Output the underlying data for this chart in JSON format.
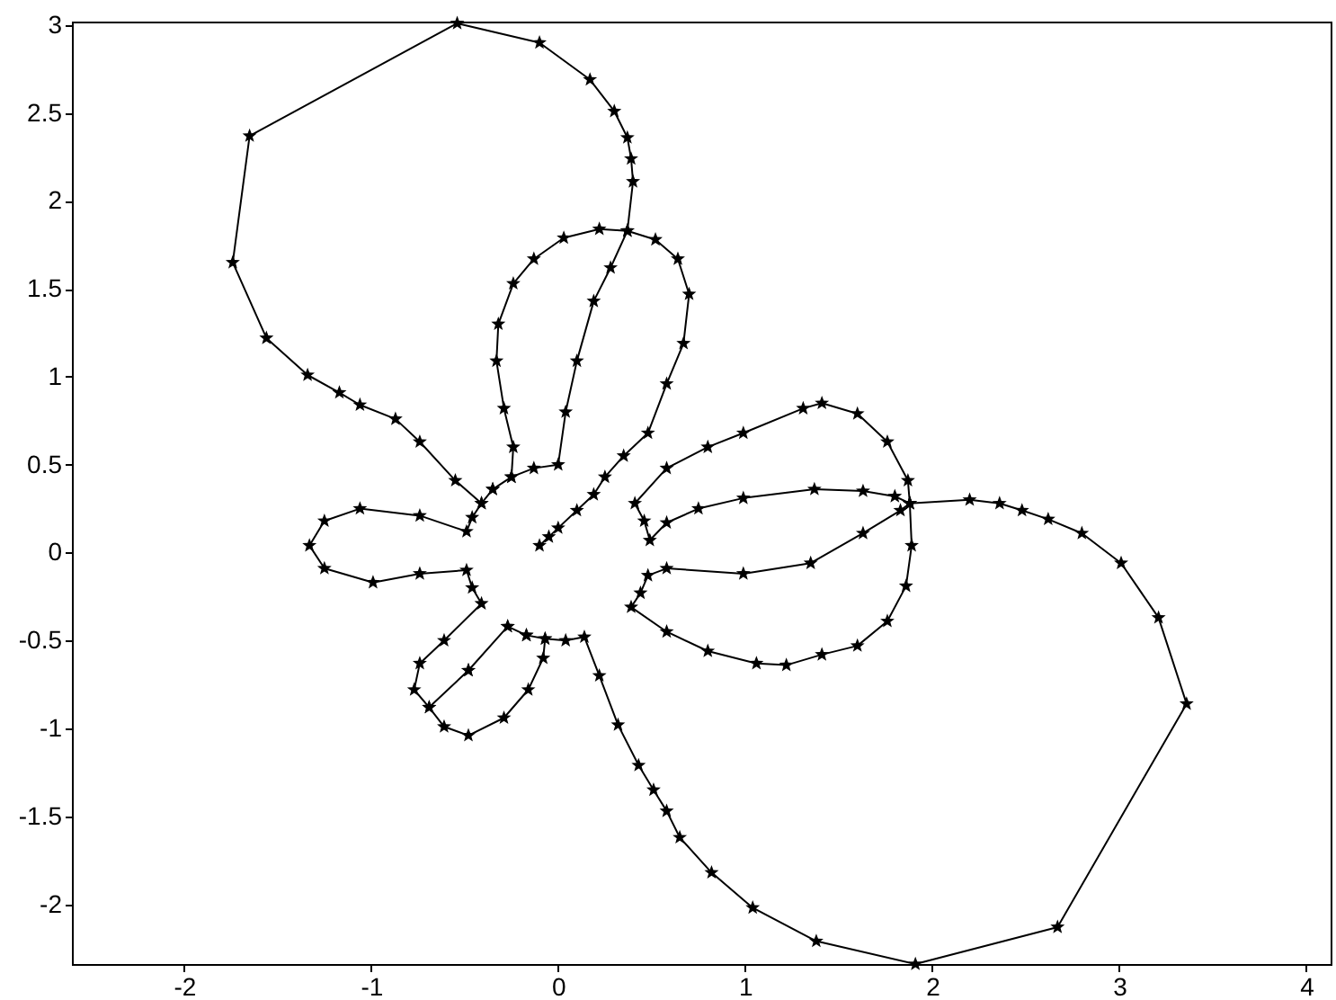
{
  "chart_data": {
    "type": "line",
    "color": "#000000",
    "marker": "star",
    "line_style": "solid",
    "xlim": [
      -2.6,
      4.13
    ],
    "ylim": [
      -2.34,
      3.02
    ],
    "xticks": [
      -2,
      -1,
      0,
      1,
      2,
      3,
      4
    ],
    "yticks": [
      -2,
      -1.5,
      -1,
      -0.5,
      0,
      0.5,
      1,
      1.5,
      2,
      2.5,
      3
    ],
    "x": [
      -0.1,
      -0.05,
      0.0,
      0.1,
      0.19,
      0.25,
      0.35,
      0.48,
      0.58,
      0.67,
      0.7,
      0.64,
      0.52,
      0.37,
      0.28,
      0.19,
      0.1,
      0.04,
      0.0,
      -0.13,
      -0.25,
      -0.35,
      -0.41,
      -0.55,
      -0.74,
      -0.87,
      -1.06,
      -1.17,
      -1.34,
      -1.56,
      -1.74,
      -1.65,
      -0.54,
      -0.1,
      0.17,
      0.3,
      0.37,
      0.39,
      0.4,
      0.37,
      0.22,
      0.03,
      -0.13,
      -0.24,
      -0.32,
      -0.33,
      -0.29,
      -0.24,
      -0.25,
      -0.35,
      -0.41,
      -0.46,
      -0.49,
      -0.74,
      -1.06,
      -1.25,
      -1.33,
      -1.25,
      -0.99,
      -0.74,
      -0.49,
      -0.46,
      -0.41,
      -0.61,
      -0.74,
      -0.77,
      -0.69,
      -0.61,
      -0.48,
      -0.29,
      -0.16,
      -0.08,
      -0.07,
      -0.17,
      -0.27,
      -0.48,
      -0.69,
      -0.48,
      -0.27,
      -0.17,
      -0.07,
      0.04,
      0.14,
      0.22,
      0.32,
      0.43,
      0.51,
      0.58,
      0.65,
      0.82,
      1.04,
      1.38,
      1.91,
      2.67,
      3.36,
      3.21,
      3.01,
      2.8,
      2.62,
      2.48,
      2.36,
      2.2,
      1.88,
      1.87,
      1.76,
      1.6,
      1.41,
      1.31,
      0.99,
      0.8,
      0.58,
      0.41,
      0.46,
      0.49,
      0.58,
      0.75,
      0.99,
      1.37,
      1.63,
      1.8,
      1.88,
      1.83,
      1.63,
      1.35,
      0.99,
      0.58,
      0.48,
      0.44,
      0.39,
      0.58,
      0.8,
      1.06,
      1.22,
      1.41,
      1.6,
      1.76,
      1.86,
      1.89,
      1.88
    ],
    "values": [
      0.04,
      0.09,
      0.14,
      0.24,
      0.33,
      0.43,
      0.55,
      0.68,
      0.96,
      1.19,
      1.47,
      1.67,
      1.78,
      1.83,
      1.62,
      1.43,
      1.09,
      0.8,
      0.5,
      0.48,
      0.43,
      0.36,
      0.28,
      0.41,
      0.63,
      0.76,
      0.84,
      0.91,
      1.01,
      1.22,
      1.65,
      2.37,
      3.01,
      2.9,
      2.69,
      2.51,
      2.36,
      2.24,
      2.11,
      1.83,
      1.84,
      1.79,
      1.67,
      1.53,
      1.3,
      1.09,
      0.82,
      0.6,
      0.43,
      0.36,
      0.28,
      0.2,
      0.12,
      0.21,
      0.25,
      0.18,
      0.04,
      -0.09,
      -0.17,
      -0.12,
      -0.1,
      -0.2,
      -0.29,
      -0.5,
      -0.63,
      -0.78,
      -0.88,
      -0.99,
      -1.04,
      -0.94,
      -0.78,
      -0.6,
      -0.49,
      -0.47,
      -0.42,
      -0.67,
      -0.88,
      -0.67,
      -0.42,
      -0.47,
      -0.49,
      -0.5,
      -0.48,
      -0.7,
      -0.98,
      -1.21,
      -1.35,
      -1.47,
      -1.62,
      -1.82,
      -2.02,
      -2.21,
      -2.34,
      -2.13,
      -0.86,
      -0.37,
      -0.06,
      0.11,
      0.19,
      0.24,
      0.28,
      0.3,
      0.28,
      0.41,
      0.63,
      0.79,
      0.85,
      0.82,
      0.68,
      0.6,
      0.48,
      0.28,
      0.18,
      0.07,
      0.17,
      0.25,
      0.31,
      0.36,
      0.35,
      0.32,
      0.28,
      0.24,
      0.11,
      -0.06,
      -0.12,
      -0.09,
      -0.13,
      -0.23,
      -0.31,
      -0.45,
      -0.56,
      -0.63,
      -0.64,
      -0.58,
      -0.53,
      -0.39,
      -0.19,
      0.04,
      0.28
    ]
  }
}
